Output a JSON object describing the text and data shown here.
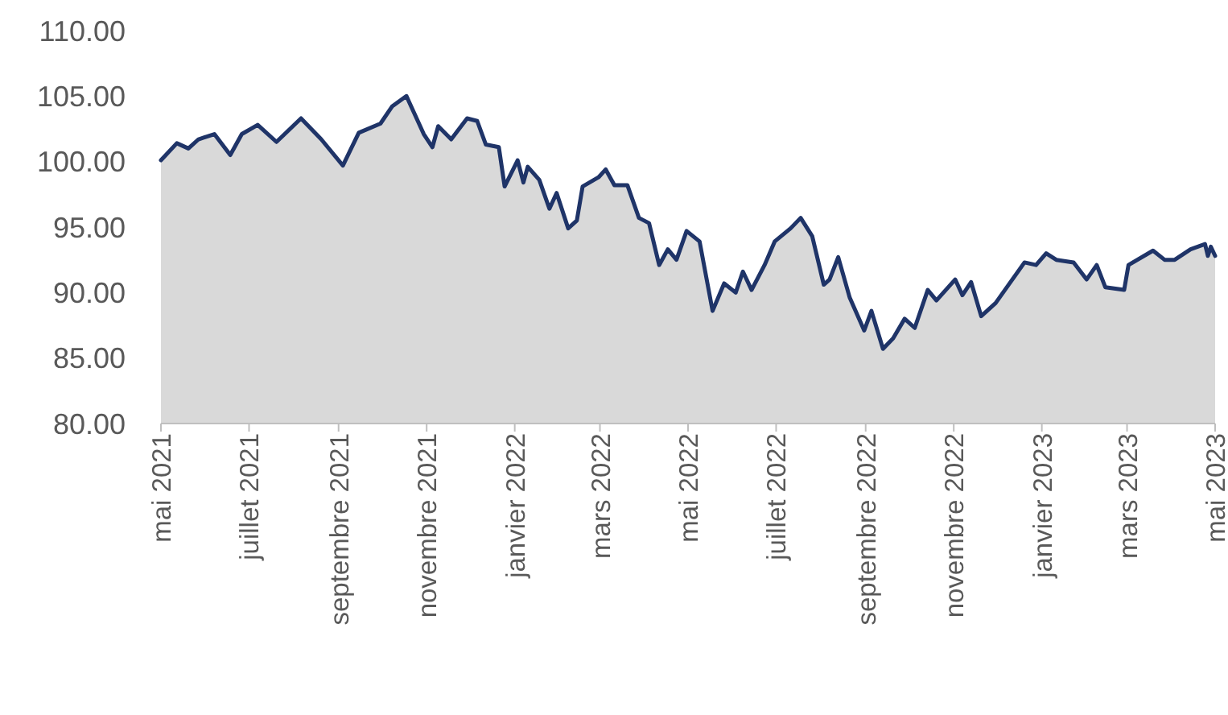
{
  "chart_data": {
    "type": "area",
    "x": [
      "2021-05-01",
      "2021-05-12",
      "2021-05-20",
      "2021-05-27",
      "2021-06-07",
      "2021-06-18",
      "2021-06-26",
      "2021-07-07",
      "2021-07-20",
      "2021-08-06",
      "2021-08-20",
      "2021-09-04",
      "2021-09-15",
      "2021-09-30",
      "2021-10-08",
      "2021-10-18",
      "2021-10-30",
      "2021-11-05",
      "2021-11-09",
      "2021-11-18",
      "2021-11-29",
      "2021-12-06",
      "2021-12-12",
      "2021-12-21",
      "2021-12-25",
      "2022-01-03",
      "2022-01-07",
      "2022-01-10",
      "2022-01-18",
      "2022-01-25",
      "2022-01-30",
      "2022-02-07",
      "2022-02-13",
      "2022-02-17",
      "2022-02-28",
      "2022-03-05",
      "2022-03-11",
      "2022-03-20",
      "2022-03-28",
      "2022-04-04",
      "2022-04-11",
      "2022-04-17",
      "2022-04-23",
      "2022-04-30",
      "2022-05-09",
      "2022-05-18",
      "2022-05-26",
      "2022-06-03",
      "2022-06-08",
      "2022-06-14",
      "2022-06-23",
      "2022-06-30",
      "2022-07-11",
      "2022-07-18",
      "2022-07-26",
      "2022-08-03",
      "2022-08-07",
      "2022-08-13",
      "2022-08-21",
      "2022-08-31",
      "2022-09-05",
      "2022-09-13",
      "2022-09-20",
      "2022-09-28",
      "2022-10-05",
      "2022-10-14",
      "2022-10-20",
      "2022-11-02",
      "2022-11-07",
      "2022-11-13",
      "2022-11-20",
      "2022-11-30",
      "2022-12-09",
      "2022-12-20",
      "2022-12-28",
      "2023-01-04",
      "2023-01-11",
      "2023-01-23",
      "2023-02-01",
      "2023-02-08",
      "2023-02-14",
      "2023-02-27",
      "2023-03-02",
      "2023-03-19",
      "2023-03-27",
      "2023-04-03",
      "2023-04-14",
      "2023-04-24",
      "2023-04-26",
      "2023-04-28",
      "2023-05-01"
    ],
    "series": [
      {
        "color": "#1f3468",
        "values": [
          100.1,
          101.4,
          101.0,
          101.7,
          102.1,
          100.5,
          102.1,
          102.8,
          101.5,
          103.3,
          101.7,
          99.7,
          102.2,
          102.9,
          104.2,
          105.0,
          102.1,
          101.1,
          102.7,
          101.7,
          103.3,
          103.1,
          101.3,
          101.1,
          98.1,
          100.1,
          98.4,
          99.6,
          98.6,
          96.4,
          97.6,
          94.9,
          95.5,
          98.1,
          98.8,
          99.4,
          98.2,
          98.2,
          95.7,
          95.3,
          92.1,
          93.3,
          92.5,
          94.7,
          93.9,
          88.6,
          90.7,
          90.0,
          91.6,
          90.2,
          92.1,
          93.9,
          94.9,
          95.7,
          94.3,
          90.6,
          91.0,
          92.7,
          89.6,
          87.1,
          88.6,
          85.7,
          86.5,
          88.0,
          87.3,
          90.2,
          89.4,
          91.0,
          89.8,
          90.8,
          88.2,
          89.2,
          90.6,
          92.3,
          92.1,
          93.0,
          92.5,
          92.3,
          91.0,
          92.1,
          90.4,
          90.2,
          92.1,
          93.2,
          92.5,
          92.5,
          93.3,
          93.7,
          92.8,
          93.5,
          92.8
        ]
      }
    ],
    "xlim": [
      "2021-05-01",
      "2023-05-01"
    ],
    "xticks": [
      {
        "value": "2021-05-01",
        "label": "mai 2021"
      },
      {
        "value": "2021-07-01",
        "label": "juillet 2021"
      },
      {
        "value": "2021-09-01",
        "label": "septembre 2021"
      },
      {
        "value": "2021-11-01",
        "label": "novembre 2021"
      },
      {
        "value": "2022-01-01",
        "label": "janvier 2022"
      },
      {
        "value": "2022-03-01",
        "label": "mars 2022"
      },
      {
        "value": "2022-05-01",
        "label": "mai 2022"
      },
      {
        "value": "2022-07-01",
        "label": "juillet 2022"
      },
      {
        "value": "2022-09-01",
        "label": "septembre 2022"
      },
      {
        "value": "2022-11-01",
        "label": "novembre 2022"
      },
      {
        "value": "2023-01-01",
        "label": "janvier 2023"
      },
      {
        "value": "2023-03-01",
        "label": "mars 2023"
      },
      {
        "value": "2023-05-01",
        "label": "mai 2023"
      }
    ],
    "ylim": [
      80,
      110
    ],
    "yticks": [
      {
        "value": 80,
        "label": "80.00"
      },
      {
        "value": 85,
        "label": "85.00"
      },
      {
        "value": 90,
        "label": "90.00"
      },
      {
        "value": 95,
        "label": "95.00"
      },
      {
        "value": 100,
        "label": "100.00"
      },
      {
        "value": 105,
        "label": "105.00"
      },
      {
        "value": 110,
        "label": "110.00"
      }
    ]
  }
}
